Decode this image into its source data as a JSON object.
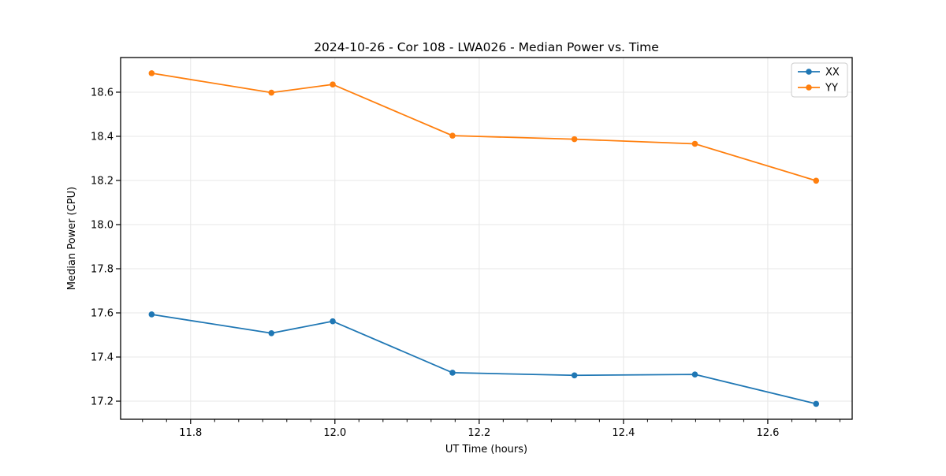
{
  "figure": {
    "background": "#ffffff"
  },
  "chart_data": {
    "type": "line",
    "title": "2024-10-26 - Cor 108 - LWA026 - Median Power vs. Time",
    "xlabel": "UT Time (hours)",
    "ylabel": "Median Power (CPU)",
    "x": [
      11.746,
      11.912,
      11.997,
      12.163,
      12.332,
      12.499,
      12.667
    ],
    "series": [
      {
        "name": "XX",
        "color": "#1f77b4",
        "values": [
          17.593,
          17.508,
          17.562,
          17.329,
          17.317,
          17.321,
          17.188
        ]
      },
      {
        "name": "YY",
        "color": "#ff7f0e",
        "values": [
          18.686,
          18.598,
          18.635,
          18.403,
          18.387,
          18.366,
          18.199
        ]
      }
    ],
    "xlim": [
      11.703,
      12.717
    ],
    "ylim": [
      17.118,
      18.757
    ],
    "xticks": [
      11.8,
      12.0,
      12.2,
      12.4,
      12.6
    ],
    "yticks": [
      17.2,
      17.4,
      17.6,
      17.8,
      18.0,
      18.2,
      18.4,
      18.6
    ],
    "x_minor_divisions": 6,
    "tick_decimals": 1,
    "grid": true,
    "grid_color": "#e7e7e7",
    "spine_color": "#000000",
    "legend": {
      "position": "upper-right",
      "entries": [
        "XX",
        "YY"
      ]
    }
  }
}
